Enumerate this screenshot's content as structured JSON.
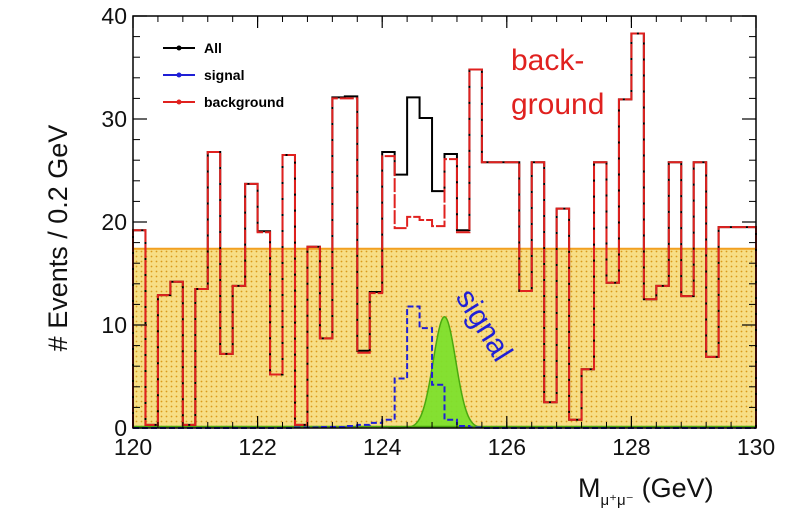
{
  "chart_data": {
    "type": "step-histogram",
    "xlabel": "M",
    "xlabel_sub": "μ⁺μ⁻",
    "xlabel_unit": "(GeV)",
    "ylabel": "# Events / 0.2 GeV",
    "xlim": [
      120,
      130
    ],
    "ylim": [
      0,
      40
    ],
    "bin_width": 0.2,
    "xticks": [
      "120",
      "122",
      "124",
      "126",
      "128",
      "130"
    ],
    "yticks": [
      "0",
      "10",
      "20",
      "30",
      "40"
    ],
    "bin_edges_start": 120,
    "legend": {
      "position": "top-left",
      "entries": [
        {
          "label": "All",
          "color": "#000000"
        },
        {
          "label": "signal",
          "color": "#1f1fd6"
        },
        {
          "label": "background",
          "color": "#e0211f"
        }
      ]
    },
    "series": [
      {
        "name": "All",
        "color": "#000000",
        "values": [
          19.2,
          0.3,
          12.9,
          14.2,
          0.3,
          13.5,
          26.8,
          7.2,
          13.8,
          23.7,
          19.1,
          5.2,
          26.5,
          0.3,
          17.6,
          8.7,
          32.1,
          32.2,
          7.5,
          13.2,
          26.8,
          24.6,
          32.1,
          30.1,
          23.0,
          26.6,
          19.2,
          34.8,
          25.8,
          25.8,
          25.8,
          13.3,
          25.8,
          2.5,
          21.3,
          0.8,
          5.7,
          25.8,
          14.1,
          31.9,
          38.3,
          12.5,
          13.8,
          25.8,
          12.8,
          25.8,
          6.9,
          19.5,
          19.5,
          19.5
        ]
      },
      {
        "name": "background",
        "color": "#e0211f",
        "values": [
          19.2,
          0.3,
          12.9,
          14.2,
          0.3,
          13.5,
          26.8,
          7.2,
          13.8,
          23.7,
          19.0,
          5.2,
          26.5,
          0.3,
          17.6,
          8.7,
          32.0,
          32.0,
          7.3,
          13.1,
          26.4,
          19.4,
          20.5,
          20.2,
          19.6,
          26.1,
          19.0,
          34.8,
          25.8,
          25.8,
          25.8,
          13.3,
          25.8,
          2.5,
          21.3,
          0.8,
          5.7,
          25.8,
          14.1,
          31.9,
          38.3,
          12.5,
          13.8,
          25.8,
          12.8,
          25.8,
          6.9,
          19.5,
          19.5,
          19.5
        ]
      },
      {
        "name": "signal",
        "color": "#1f1fd6",
        "values": [
          0,
          0,
          0,
          0,
          0,
          0,
          0,
          0,
          0,
          0,
          0,
          0,
          0,
          0.05,
          0.05,
          0.1,
          0.1,
          0.2,
          0.3,
          0.5,
          0.8,
          4.8,
          11.8,
          9.7,
          4.2,
          0.8,
          0.2,
          0.05,
          0,
          0,
          0,
          0,
          0,
          0,
          0,
          0,
          0,
          0,
          0,
          0,
          0,
          0,
          0,
          0,
          0,
          0,
          0,
          0,
          0,
          0
        ]
      }
    ],
    "signal_fit": {
      "mean": 125.0,
      "sigma": 0.18,
      "peak": 10.8,
      "color": "#7ddf2c"
    },
    "background_level": 17.4,
    "annotations": [
      {
        "text": "back-",
        "color": "#e0211f"
      },
      {
        "text": "ground",
        "color": "#e0211f"
      },
      {
        "text": "signal",
        "color": "#1f1fd6"
      }
    ]
  }
}
